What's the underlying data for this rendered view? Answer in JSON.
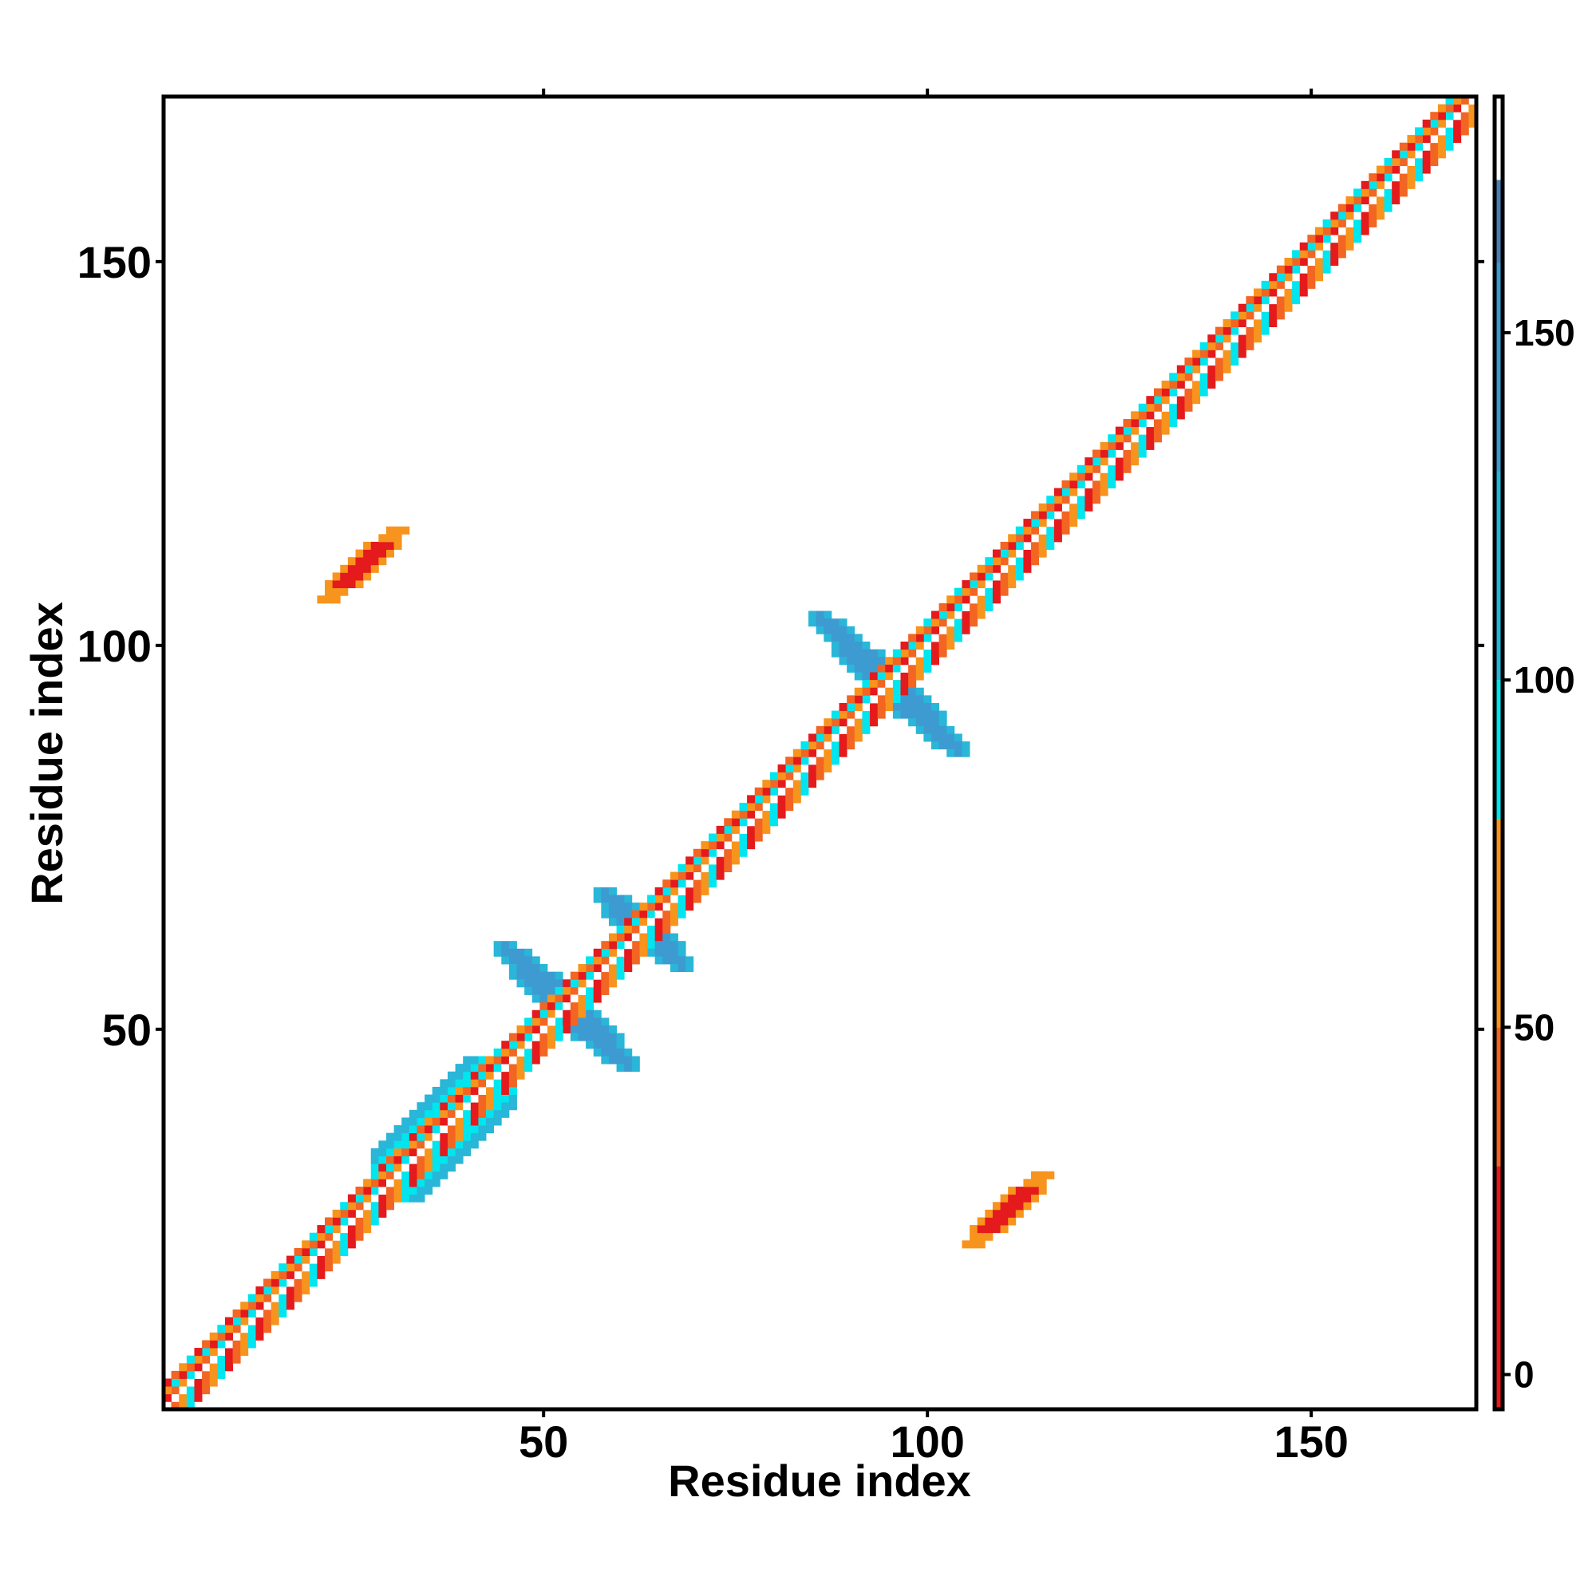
{
  "chart_data": {
    "type": "heatmap",
    "title": "",
    "xlabel": "Residue index",
    "ylabel": "Residue index",
    "xlim": [
      1,
      171
    ],
    "ylim": [
      1,
      171
    ],
    "x_ticks": [
      50,
      100,
      150
    ],
    "y_ticks": [
      50,
      100,
      150
    ],
    "grid": false,
    "legend": "colorbar-right",
    "colorbar": {
      "range": [
        -5,
        184
      ],
      "ticks": [
        0,
        50,
        100,
        150
      ],
      "segments": [
        {
          "from": -5,
          "to": 30,
          "color": "#e41a1c"
        },
        {
          "from": 30,
          "to": 50,
          "color": "#f26522"
        },
        {
          "from": 50,
          "to": 80,
          "color": "#f7941d"
        },
        {
          "from": 80,
          "to": 100,
          "color": "#00e5ee"
        },
        {
          "from": 100,
          "to": 130,
          "color": "#29b6d8"
        },
        {
          "from": 130,
          "to": 160,
          "color": "#3d9bd1"
        },
        {
          "from": 160,
          "to": 172,
          "color": "#4a7fb5"
        },
        {
          "from": 172,
          "to": 184,
          "color": "#ffffff"
        }
      ]
    },
    "diagonal": {
      "start": 1,
      "end": 171,
      "band_pattern": [
        "#00e5ee",
        "#e41a1c",
        "#f26522",
        "#f7941d"
      ]
    },
    "contact_regions": [
      {
        "name": "strand-pair-upper-left",
        "x": [
          22,
          31
        ],
        "y": [
          106,
          117
        ],
        "color": "#e41a1c",
        "edge_color": "#f7941d"
      },
      {
        "name": "strand-pair-lower-right",
        "x": [
          106,
          117
        ],
        "y": [
          22,
          31
        ],
        "color": "#e41a1c",
        "edge_color": "#f7941d"
      },
      {
        "name": "helix-block-30-45",
        "x": [
          28,
          46
        ],
        "y": [
          28,
          46
        ],
        "color": "#00e5ee",
        "edge_color": "#29b6d8"
      },
      {
        "name": "anti-diag-45-60",
        "x": [
          45,
          61
        ],
        "y": [
          45,
          61
        ],
        "color": "#3d9bd1",
        "edge_color": "#29b6d8"
      },
      {
        "name": "anti-diag-58-68",
        "x": [
          58,
          68
        ],
        "y": [
          58,
          68
        ],
        "color": "#3d9bd1",
        "edge_color": "#29b6d8"
      },
      {
        "name": "anti-diag-86-104",
        "x": [
          86,
          104
        ],
        "y": [
          86,
          104
        ],
        "color": "#3d9bd1",
        "edge_color": "#29b6d8"
      }
    ]
  }
}
